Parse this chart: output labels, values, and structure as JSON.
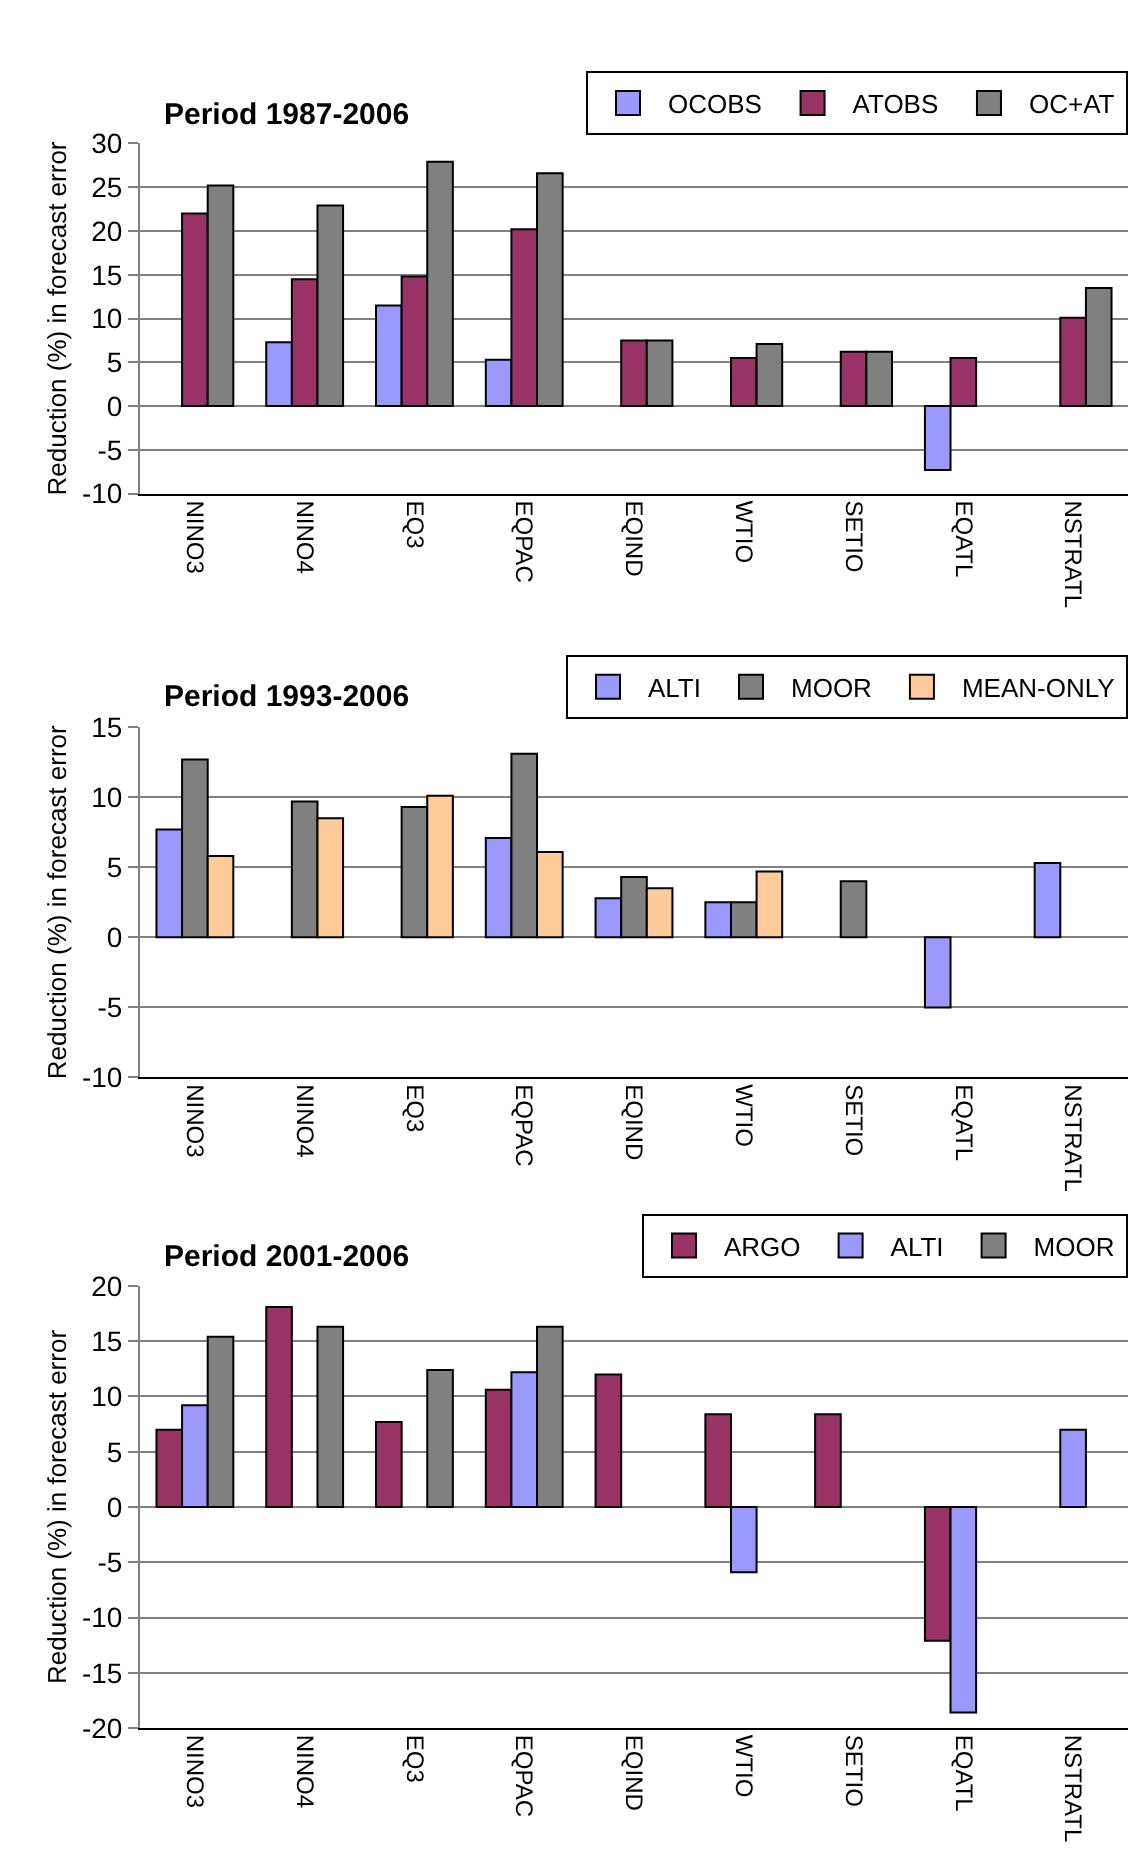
{
  "chart_data": [
    {
      "type": "bar",
      "title": "Period 1987-2006",
      "ylabel": "Reduction (%) in forecast error",
      "categories": [
        "NINO3",
        "NINO4",
        "EQ3",
        "EQPAC",
        "EQIND",
        "WTIO",
        "SETIO",
        "EQATL",
        "NSTRATL"
      ],
      "series": [
        {
          "name": "OCOBS",
          "color": "#9999ff",
          "values": [
            null,
            7.3,
            11.5,
            5.3,
            null,
            null,
            null,
            -7.3,
            null
          ]
        },
        {
          "name": "ATOBS",
          "color": "#993366",
          "values": [
            22,
            14.5,
            14.8,
            20.2,
            7.5,
            5.5,
            6.2,
            5.5,
            10.1
          ]
        },
        {
          "name": "OC+AT",
          "color": "#808080",
          "values": [
            25.2,
            22.9,
            27.9,
            26.6,
            7.5,
            7.1,
            6.2,
            null,
            13.5
          ]
        }
      ],
      "ylim": [
        -10,
        30
      ],
      "yticks": [
        -10,
        -5,
        0,
        5,
        10,
        15,
        20,
        25,
        30
      ],
      "grid": "y",
      "legend": "top right"
    },
    {
      "type": "bar",
      "title": "Period 1993-2006",
      "ylabel": "Reduction (%) in forecast error",
      "categories": [
        "NINO3",
        "NINO4",
        "EQ3",
        "EQPAC",
        "EQIND",
        "WTIO",
        "SETIO",
        "EQATL",
        "NSTRATL"
      ],
      "series": [
        {
          "name": "ALTI",
          "color": "#9999ff",
          "values": [
            7.7,
            null,
            null,
            7.1,
            2.8,
            2.5,
            null,
            -5,
            5.3
          ]
        },
        {
          "name": "MOOR",
          "color": "#808080",
          "values": [
            12.7,
            9.7,
            9.3,
            13.1,
            4.3,
            2.5,
            4.0,
            null,
            null
          ]
        },
        {
          "name": "MEAN-ONLY",
          "color": "#ffcc99",
          "values": [
            5.8,
            8.5,
            10.1,
            6.1,
            3.5,
            4.7,
            null,
            null,
            null
          ]
        }
      ],
      "ylim": [
        -10,
        15
      ],
      "yticks": [
        -10,
        -5,
        0,
        5,
        10,
        15
      ],
      "grid": "y",
      "legend": "top right"
    },
    {
      "type": "bar",
      "title": "Period 2001-2006",
      "ylabel": "Reduction (%) in forecast error",
      "categories": [
        "NINO3",
        "NINO4",
        "EQ3",
        "EQPAC",
        "EQIND",
        "WTIO",
        "SETIO",
        "EQATL",
        "NSTRATL"
      ],
      "series": [
        {
          "name": "ARGO",
          "color": "#993366",
          "values": [
            7,
            18.1,
            7.7,
            10.6,
            12,
            8.4,
            8.4,
            -12.1,
            null
          ]
        },
        {
          "name": "ALTI",
          "color": "#9999ff",
          "values": [
            9.2,
            null,
            null,
            12.2,
            null,
            -5.9,
            null,
            -18.6,
            7
          ]
        },
        {
          "name": "MOOR",
          "color": "#808080",
          "values": [
            15.4,
            16.3,
            12.4,
            16.3,
            null,
            null,
            null,
            null,
            null
          ]
        }
      ],
      "ylim": [
        -20,
        20
      ],
      "yticks": [
        -20,
        -15,
        -10,
        -5,
        0,
        5,
        10,
        15,
        20
      ],
      "grid": "y",
      "legend": "top right"
    }
  ]
}
